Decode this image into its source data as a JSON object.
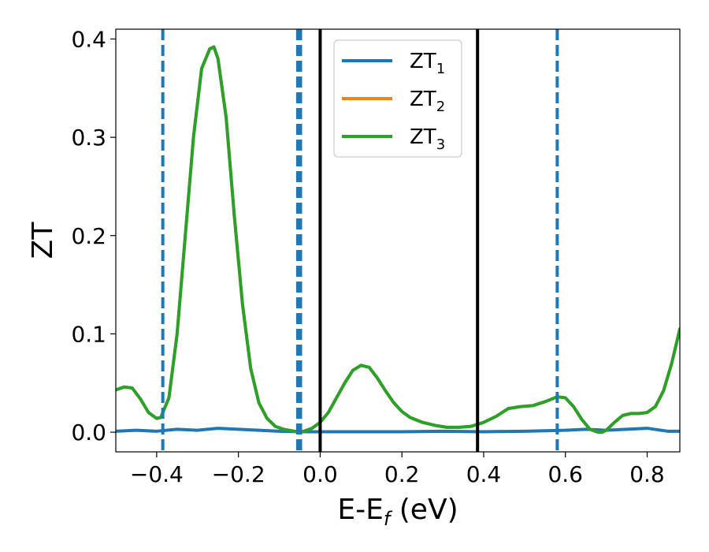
{
  "chart_data": {
    "type": "line",
    "xlabel_main": "E-E",
    "xlabel_sub": "f",
    "xlabel_unit": " (eV)",
    "ylabel": "ZT",
    "xlim": [
      -0.5,
      0.88
    ],
    "ylim": [
      -0.02,
      0.41
    ],
    "x_ticks": [
      -0.4,
      -0.2,
      0.0,
      0.2,
      0.4,
      0.6,
      0.8
    ],
    "x_tick_labels": [
      "−0.4",
      "−0.2",
      "0.0",
      "0.2",
      "0.4",
      "0.6",
      "0.8"
    ],
    "y_ticks": [
      0.0,
      0.1,
      0.2,
      0.3,
      0.4
    ],
    "y_tick_labels": [
      "0.0",
      "0.1",
      "0.2",
      "0.3",
      "0.4"
    ],
    "grid": false,
    "legend_position": "top-center",
    "series": [
      {
        "name": "ZT",
        "sub": "1",
        "color": "#1f77b4",
        "x": [
          -0.5,
          -0.45,
          -0.4,
          -0.35,
          -0.3,
          -0.25,
          -0.2,
          -0.15,
          -0.1,
          -0.05,
          0.0,
          0.1,
          0.2,
          0.3,
          0.4,
          0.5,
          0.55,
          0.6,
          0.65,
          0.7,
          0.75,
          0.8,
          0.85,
          0.88
        ],
        "y": [
          0.001,
          0.002,
          0.001,
          0.003,
          0.002,
          0.004,
          0.003,
          0.002,
          0.001,
          0.0005,
          0.0005,
          0.0005,
          0.0005,
          0.001,
          0.0005,
          0.001,
          0.0015,
          0.002,
          0.003,
          0.002,
          0.003,
          0.004,
          0.001,
          0.001
        ]
      },
      {
        "name": "ZT",
        "sub": "2",
        "color": "#ff7f0e",
        "x": [
          -0.5,
          -0.48,
          -0.46,
          -0.44,
          -0.42,
          -0.4,
          -0.39,
          -0.37,
          -0.35,
          -0.33,
          -0.31,
          -0.29,
          -0.27,
          -0.26,
          -0.25,
          -0.23,
          -0.21,
          -0.19,
          -0.17,
          -0.15,
          -0.13,
          -0.11,
          -0.09,
          -0.07,
          -0.05,
          -0.04,
          -0.02,
          0.0,
          0.02,
          0.04,
          0.06,
          0.08,
          0.1,
          0.12,
          0.14,
          0.16,
          0.18,
          0.2,
          0.22,
          0.25,
          0.28,
          0.31,
          0.34,
          0.37,
          0.4,
          0.43,
          0.46,
          0.49,
          0.52,
          0.55,
          0.58,
          0.6,
          0.62,
          0.64,
          0.66,
          0.68,
          0.69,
          0.7,
          0.72,
          0.74,
          0.76,
          0.78,
          0.8,
          0.82,
          0.84,
          0.86,
          0.88
        ],
        "y": [
          0.043,
          0.046,
          0.045,
          0.034,
          0.02,
          0.014,
          0.015,
          0.035,
          0.1,
          0.2,
          0.3,
          0.37,
          0.39,
          0.392,
          0.38,
          0.32,
          0.22,
          0.13,
          0.065,
          0.03,
          0.014,
          0.006,
          0.003,
          0.0015,
          0.0,
          0.001,
          0.004,
          0.01,
          0.02,
          0.035,
          0.05,
          0.063,
          0.068,
          0.066,
          0.055,
          0.042,
          0.03,
          0.021,
          0.015,
          0.01,
          0.007,
          0.005,
          0.005,
          0.006,
          0.01,
          0.016,
          0.024,
          0.026,
          0.027,
          0.031,
          0.036,
          0.035,
          0.026,
          0.013,
          0.003,
          0.0,
          0.0,
          0.002,
          0.01,
          0.017,
          0.019,
          0.019,
          0.02,
          0.026,
          0.042,
          0.07,
          0.105
        ]
      },
      {
        "name": "ZT",
        "sub": "3",
        "color": "#2ca02c",
        "x": [
          -0.5,
          -0.48,
          -0.46,
          -0.44,
          -0.42,
          -0.4,
          -0.39,
          -0.37,
          -0.35,
          -0.33,
          -0.31,
          -0.29,
          -0.27,
          -0.26,
          -0.25,
          -0.23,
          -0.21,
          -0.19,
          -0.17,
          -0.15,
          -0.13,
          -0.11,
          -0.09,
          -0.07,
          -0.05,
          -0.04,
          -0.02,
          0.0,
          0.02,
          0.04,
          0.06,
          0.08,
          0.1,
          0.12,
          0.14,
          0.16,
          0.18,
          0.2,
          0.22,
          0.25,
          0.28,
          0.31,
          0.34,
          0.37,
          0.4,
          0.43,
          0.46,
          0.49,
          0.52,
          0.55,
          0.58,
          0.6,
          0.62,
          0.64,
          0.66,
          0.68,
          0.69,
          0.7,
          0.72,
          0.74,
          0.76,
          0.78,
          0.8,
          0.82,
          0.84,
          0.86,
          0.88
        ],
        "y": [
          0.043,
          0.046,
          0.045,
          0.034,
          0.02,
          0.014,
          0.015,
          0.035,
          0.1,
          0.2,
          0.3,
          0.37,
          0.39,
          0.392,
          0.38,
          0.32,
          0.22,
          0.13,
          0.065,
          0.03,
          0.014,
          0.006,
          0.003,
          0.0015,
          0.0,
          0.001,
          0.004,
          0.01,
          0.02,
          0.035,
          0.05,
          0.063,
          0.068,
          0.066,
          0.055,
          0.042,
          0.03,
          0.021,
          0.015,
          0.01,
          0.007,
          0.005,
          0.005,
          0.006,
          0.01,
          0.016,
          0.024,
          0.026,
          0.027,
          0.031,
          0.036,
          0.035,
          0.026,
          0.013,
          0.003,
          0.0,
          0.0,
          0.002,
          0.01,
          0.017,
          0.019,
          0.019,
          0.02,
          0.026,
          0.042,
          0.07,
          0.105
        ]
      }
    ],
    "vlines_dashed": {
      "color": "#1f77b4",
      "x": [
        -0.385,
        -0.055,
        -0.048,
        0.58
      ]
    },
    "vlines_solid": {
      "color": "#000000",
      "x": [
        0.0,
        0.385
      ]
    }
  }
}
